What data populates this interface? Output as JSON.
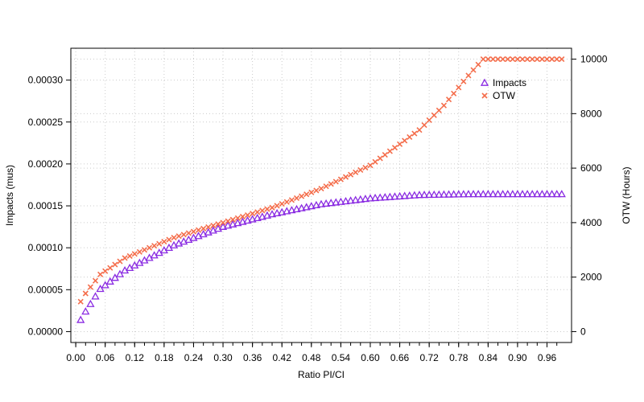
{
  "chart_data": {
    "type": "scatter",
    "title": "",
    "xlabel": "Ratio PI/CI",
    "ylabel_left": "Impacts  (mus)",
    "ylabel_right": "OTW (Hours)",
    "xlim": [
      -0.01,
      1.01
    ],
    "ylim_left": [
      -1.3e-05,
      0.000338
    ],
    "ylim_right": [
      -400,
      10400
    ],
    "x_ticks": [
      "0.00",
      "0.06",
      "0.12",
      "0.18",
      "0.24",
      "0.30",
      "0.36",
      "0.42",
      "0.48",
      "0.54",
      "0.60",
      "0.66",
      "0.72",
      "0.78",
      "0.84",
      "0.90",
      "0.96"
    ],
    "y_left_ticks": [
      "0.00000",
      "0.00005",
      "0.00010",
      "0.00015",
      "0.00020",
      "0.00025",
      "0.00030"
    ],
    "y_right_ticks": [
      "0",
      "2000",
      "4000",
      "6000",
      "8000",
      "10000"
    ],
    "grid": true,
    "legend_position": "top-right",
    "x_start": 0.01,
    "x_end": 0.99,
    "x_step": 0.01,
    "series": [
      {
        "name": "Impacts",
        "axis": "left",
        "marker": "triangle",
        "color": "#8a2be2",
        "keypoints_x": [
          0.01,
          0.02,
          0.05,
          0.1,
          0.2,
          0.3,
          0.4,
          0.5,
          0.6,
          0.7,
          0.8,
          0.99
        ],
        "keypoints_y": [
          1.4e-05,
          2.4e-05,
          5.1e-05,
          7.3e-05,
          0.000103,
          0.000125,
          0.00014,
          0.000152,
          0.000159,
          0.000163,
          0.000164,
          0.000164
        ]
      },
      {
        "name": "OTW",
        "axis": "right",
        "marker": "x",
        "color": "#f46d4b",
        "keypoints_x": [
          0.01,
          0.02,
          0.05,
          0.1,
          0.2,
          0.3,
          0.4,
          0.5,
          0.6,
          0.7,
          0.75,
          0.8,
          0.83,
          0.84,
          0.99
        ],
        "keypoints_y": [
          1100,
          1400,
          2100,
          2700,
          3450,
          4000,
          4550,
          5250,
          6100,
          7400,
          8300,
          9400,
          10000,
          10000,
          10000
        ]
      }
    ]
  }
}
